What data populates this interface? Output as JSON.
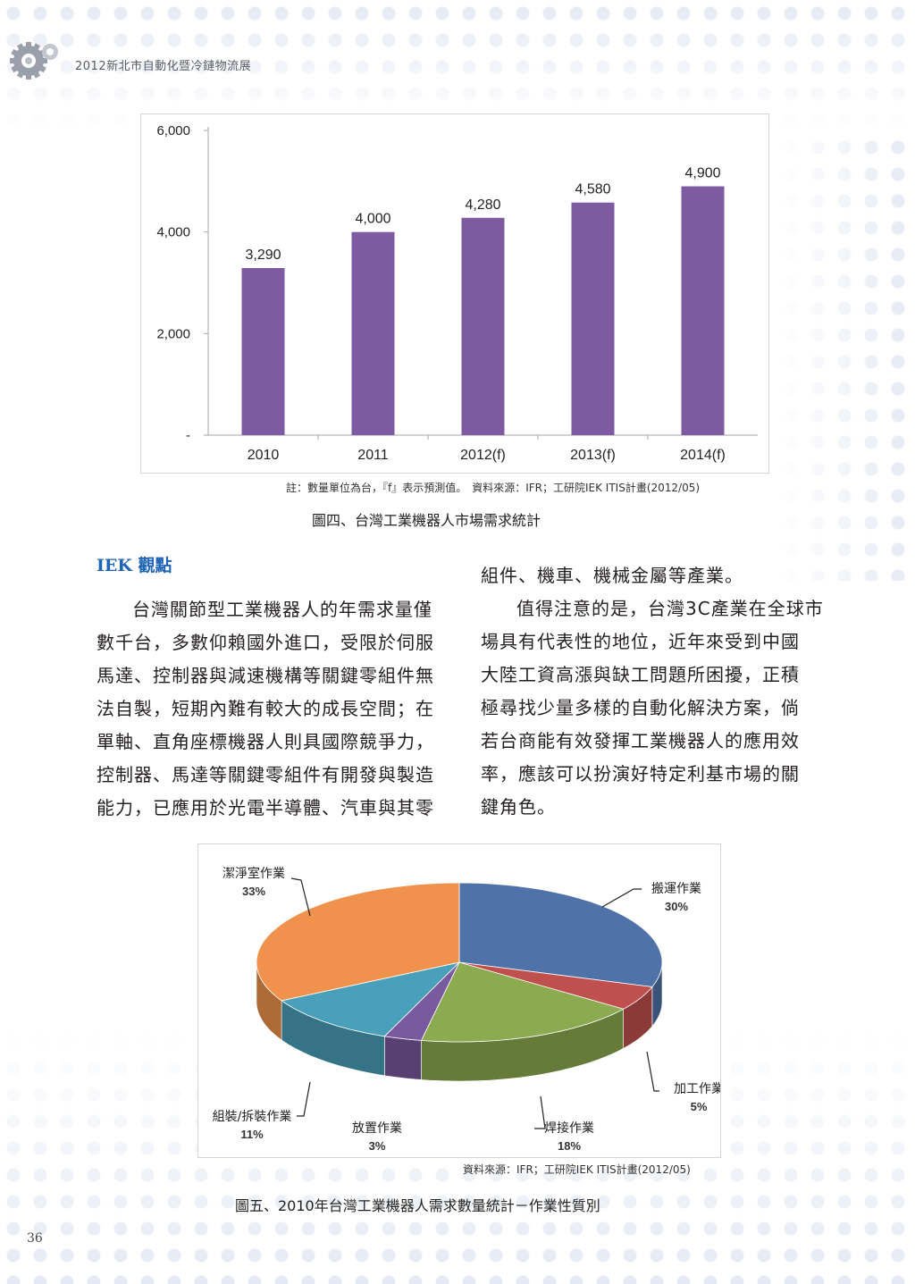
{
  "header": {
    "title": "2012新北市自動化暨冷鏈物流展",
    "icon": "gear-icon"
  },
  "chart_data": [
    {
      "type": "bar",
      "categories": [
        "2010",
        "2011",
        "2012(f)",
        "2013(f)",
        "2014(f)"
      ],
      "values": [
        3290,
        4000,
        4280,
        4580,
        4900
      ],
      "value_labels": [
        "3,290",
        "4,000",
        "4,280",
        "4,580",
        "4,900"
      ],
      "yticks": [
        "6,000",
        "4,000",
        "2,000",
        "-"
      ],
      "ylim": [
        0,
        6000
      ],
      "color": "#7e5aa1"
    },
    {
      "type": "pie",
      "categories": [
        "搬運作業",
        "加工作業",
        "焊接作業",
        "放置作業",
        "組裝/拆裝作業",
        "潔淨室作業"
      ],
      "values": [
        30,
        5,
        18,
        3,
        11,
        33
      ],
      "value_labels": [
        "30%",
        "5%",
        "18%",
        "3%",
        "11%",
        "33%"
      ],
      "colors": [
        "#4f72a8",
        "#c0504d",
        "#8cab50",
        "#7a5a9e",
        "#4aa0ba",
        "#f0924b"
      ]
    }
  ],
  "figure4": {
    "note": "註：數量單位為台，『f』表示預測值。　資料來源：IFR；工研院IEK ITIS計畫(2012/05)",
    "caption": "圖四、台灣工業機器人市場需求統計"
  },
  "section": {
    "title": "IEK 觀點"
  },
  "body": {
    "left_lines": [
      "台灣關節型工業機器人的年需求量僅",
      "數千台，多數仰賴國外進口，受限於伺服",
      "馬達、控制器與減速機構等關鍵零組件無",
      "法自製，短期內難有較大的成長空間；在",
      "單軸、直角座標機器人則具國際競爭力，",
      "控制器、馬達等關鍵零組件有開發與製造",
      "能力，已應用於光電半導體、汽車與其零"
    ],
    "right_lines": [
      "組件、機車、機械金屬等產業。",
      "值得注意的是，台灣3C產業在全球市",
      "場具有代表性的地位，近年來受到中國",
      "大陸工資高漲與缺工問題所困擾，正積",
      "極尋找少量多樣的自動化解決方案，倘",
      "若台商能有效發揮工業機器人的應用效",
      "率，應該可以扮演好特定利基市場的關",
      "鍵角色。"
    ]
  },
  "figure5": {
    "source": "資料來源：IFR；工研院IEK ITIS計畫(2012/05)",
    "caption": "圖五、2010年台灣工業機器人需求數量統計－作業性質別"
  },
  "page_number": "36"
}
